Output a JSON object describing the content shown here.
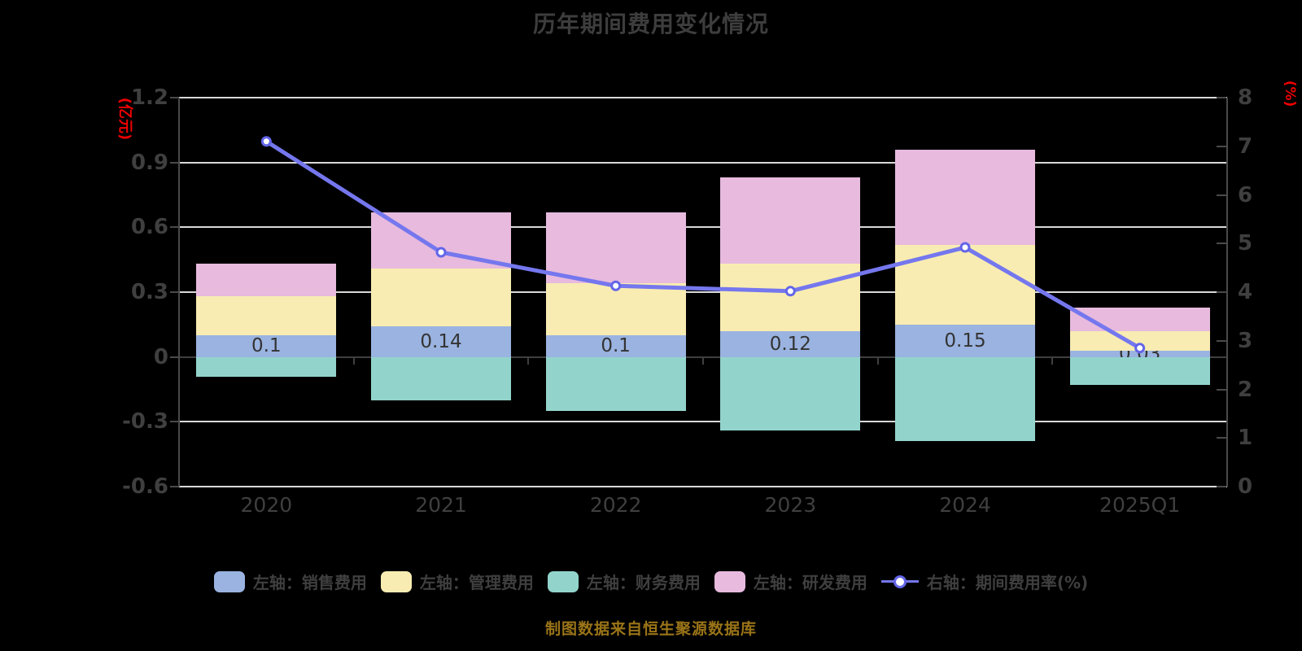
{
  "colors": {
    "background": "#000000",
    "title": "#3d3d3d",
    "axis_line": "#4a4a4a",
    "zero_line": "#3f3f3f",
    "gridline": "#d9d9d9",
    "tick_label": "#3f3f3f",
    "value_label": "#333333",
    "axis_name_red": "#ee0000",
    "footnote": "#9a7418"
  },
  "chart_data": {
    "type": "combo-stacked-bar-line",
    "title": "历年期间费用变化情况",
    "footnote": "制图数据来自恒生聚源数据库",
    "categories": [
      "2020",
      "2021",
      "2022",
      "2023",
      "2024",
      "2025Q1"
    ],
    "bar_series": [
      {
        "name": "sales-expense",
        "legend_label": "左轴：销售费用",
        "color": "#9ab3e0",
        "values": [
          0.1,
          0.14,
          0.1,
          0.12,
          0.15,
          0.03
        ],
        "labels": [
          "0.1",
          "0.14",
          "0.1",
          "0.12",
          "0.15",
          "0.03"
        ]
      },
      {
        "name": "admin-expense",
        "legend_label": "左轴：管理费用",
        "color": "#f8ecb2",
        "values": [
          0.18,
          0.27,
          0.24,
          0.31,
          0.37,
          0.09
        ]
      },
      {
        "name": "rnd-expense",
        "legend_label": "左轴：研发费用",
        "color": "#e7bade",
        "values": [
          0.15,
          0.26,
          0.33,
          0.4,
          0.44,
          0.11
        ]
      },
      {
        "name": "finance-expense",
        "legend_label": "左轴：财务费用",
        "color": "#92d4cc",
        "values": [
          -0.09,
          -0.2,
          -0.25,
          -0.34,
          -0.39,
          -0.13
        ]
      }
    ],
    "line_series": {
      "name": "period-expense-ratio",
      "legend_label": "右轴：期间费用率(%)",
      "color": "#7577ee",
      "marker_ring_color": "#6365e8",
      "marker_fill": "#ffffff",
      "values": [
        7.1,
        4.82,
        4.13,
        4.02,
        4.92,
        2.85
      ]
    },
    "legend_order": [
      "sales-expense",
      "admin-expense",
      "finance-expense",
      "rnd-expense",
      "period-expense-ratio"
    ],
    "left_axis": {
      "name": "(亿元)",
      "min": -0.6,
      "max": 1.2,
      "ticks": [
        "1.2",
        "0.9",
        "0.6",
        "0.3",
        "0",
        "-0.3",
        "-0.6"
      ]
    },
    "right_axis": {
      "name": "(%)",
      "min": 0,
      "max": 8,
      "ticks": [
        "8",
        "7",
        "6",
        "5",
        "4",
        "3",
        "2",
        "1",
        "0"
      ]
    },
    "grid": true,
    "legend_position": "bottom"
  }
}
